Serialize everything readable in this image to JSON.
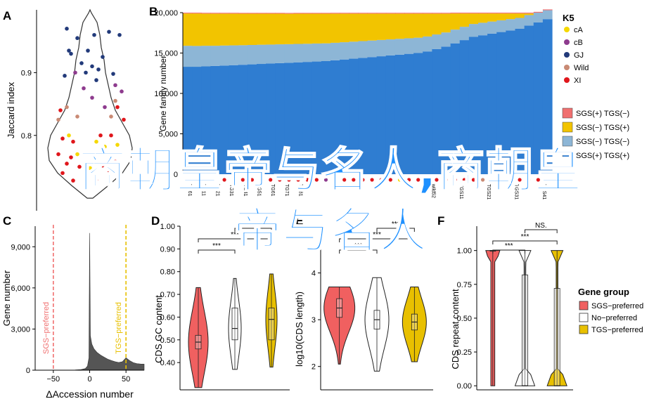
{
  "overlay_title": {
    "line1": "商朝皇帝与名人,商朝皇",
    "line2": "帝与名人"
  },
  "panels": {
    "A": {
      "letter": "A"
    },
    "B": {
      "letter": "B"
    },
    "C": {
      "letter": "C"
    },
    "D": {
      "letter": "D"
    },
    "E": {
      "letter": "E"
    },
    "F": {
      "letter": "F"
    }
  },
  "colors": {
    "cA": "#f5d800",
    "cB": "#8e3b8e",
    "GJ": "#223a7a",
    "Wild": "#c98a74",
    "XI": "#e0161b",
    "SGS_plus_TGS_minus": "#f07070",
    "SGS_minus_TGS_plus": "#f2c400",
    "SGS_minus_TGS_minus": "#8db6d6",
    "SGS_plus_TGS_plus": "#2f7dd1",
    "sgs_pref": "#f06060",
    "no_pref": "#ffffff",
    "tgs_pref": "#e8c000",
    "overlay": "#1e90ff"
  },
  "chart_data": [
    {
      "id": "A",
      "type": "scatter",
      "title": "",
      "xlabel": "",
      "ylabel": "Jaccard index",
      "ylim": [
        0.68,
        1.0
      ],
      "yticks": [
        "0.8",
        "0.9"
      ],
      "legend_title": "K5",
      "points": [
        {
          "g": "GJ",
          "x": -0.55,
          "y": 0.97
        },
        {
          "g": "GJ",
          "x": 0.45,
          "y": 0.965
        },
        {
          "g": "GJ",
          "x": -0.3,
          "y": 0.955
        },
        {
          "g": "GJ",
          "x": 0.1,
          "y": 0.96
        },
        {
          "g": "GJ",
          "x": 0.7,
          "y": 0.96
        },
        {
          "g": "GJ",
          "x": -0.5,
          "y": 0.935
        },
        {
          "g": "GJ",
          "x": -0.45,
          "y": 0.93
        },
        {
          "g": "GJ",
          "x": -0.05,
          "y": 0.935
        },
        {
          "g": "GJ",
          "x": 0.3,
          "y": 0.925
        },
        {
          "g": "GJ",
          "x": -0.2,
          "y": 0.915
        },
        {
          "g": "GJ",
          "x": 0.05,
          "y": 0.91
        },
        {
          "g": "GJ",
          "x": -0.1,
          "y": 0.9
        },
        {
          "g": "GJ",
          "x": 0.2,
          "y": 0.905
        },
        {
          "g": "GJ",
          "x": 0.55,
          "y": 0.898
        },
        {
          "g": "GJ",
          "x": -0.6,
          "y": 0.895
        },
        {
          "g": "GJ",
          "x": 0.15,
          "y": 0.888
        },
        {
          "g": "cB",
          "x": -0.35,
          "y": 0.9
        },
        {
          "g": "cB",
          "x": 0.6,
          "y": 0.88
        },
        {
          "g": "cB",
          "x": 0.75,
          "y": 0.87
        },
        {
          "g": "cB",
          "x": -0.15,
          "y": 0.875
        },
        {
          "g": "cB",
          "x": 0.05,
          "y": 0.86
        },
        {
          "g": "cB",
          "x": 0.35,
          "y": 0.845
        },
        {
          "g": "Wild",
          "x": -0.55,
          "y": 0.845
        },
        {
          "g": "Wild",
          "x": 0.6,
          "y": 0.855
        },
        {
          "g": "Wild",
          "x": -0.75,
          "y": 0.825
        },
        {
          "g": "Wild",
          "x": -0.3,
          "y": 0.83
        },
        {
          "g": "Wild",
          "x": 0.5,
          "y": 0.83
        },
        {
          "g": "XI",
          "x": -0.7,
          "y": 0.84
        },
        {
          "g": "XI",
          "x": 0.65,
          "y": 0.845
        },
        {
          "g": "XI",
          "x": 0.8,
          "y": 0.825
        },
        {
          "g": "XI",
          "x": -0.65,
          "y": 0.795
        },
        {
          "g": "XI",
          "x": -0.4,
          "y": 0.79
        },
        {
          "g": "XI",
          "x": 0.25,
          "y": 0.8
        },
        {
          "g": "XI",
          "x": 0.5,
          "y": 0.8
        },
        {
          "g": "XI",
          "x": -0.75,
          "y": 0.77
        },
        {
          "g": "XI",
          "x": -0.45,
          "y": 0.765
        },
        {
          "g": "XI",
          "x": -0.1,
          "y": 0.77
        },
        {
          "g": "XI",
          "x": 0.1,
          "y": 0.768
        },
        {
          "g": "XI",
          "x": 0.4,
          "y": 0.77
        },
        {
          "g": "XI",
          "x": 0.75,
          "y": 0.77
        },
        {
          "g": "XI",
          "x": -0.55,
          "y": 0.755
        },
        {
          "g": "XI",
          "x": 0.6,
          "y": 0.758
        },
        {
          "g": "XI",
          "x": -0.25,
          "y": 0.75
        },
        {
          "g": "XI",
          "x": 0.3,
          "y": 0.752
        },
        {
          "g": "XI",
          "x": -0.65,
          "y": 0.74
        },
        {
          "g": "XI",
          "x": 0.45,
          "y": 0.74
        },
        {
          "g": "XI",
          "x": -0.1,
          "y": 0.738
        },
        {
          "g": "XI",
          "x": 0.7,
          "y": 0.735
        },
        {
          "g": "XI",
          "x": -0.4,
          "y": 0.728
        },
        {
          "g": "XI",
          "x": 0.15,
          "y": 0.728
        },
        {
          "g": "cA",
          "x": -0.5,
          "y": 0.8
        },
        {
          "g": "cA",
          "x": 0.15,
          "y": 0.79
        },
        {
          "g": "cA",
          "x": 0.65,
          "y": 0.785
        },
        {
          "g": "cA",
          "x": -0.3,
          "y": 0.77
        },
        {
          "g": "cA",
          "x": 0.35,
          "y": 0.782
        },
        {
          "g": "cA",
          "x": 0.0,
          "y": 0.748
        }
      ]
    },
    {
      "id": "B",
      "type": "bar",
      "stacked": true,
      "title": "",
      "xlabel": "",
      "ylabel": "Gene family number",
      "ylim": [
        0,
        20000
      ],
      "yticks": [
        "0",
        "5,000",
        "10,000",
        "15,000",
        "20,000"
      ],
      "x_labels_left": [
        "TG61",
        "TG11",
        "TG21",
        "TG31",
        "TG41",
        "TG51",
        "TG61",
        "TG71",
        "TG81"
      ],
      "x_labels_right": [
        "wild52",
        "TGS11",
        "TGS21",
        "TGS31",
        "TGS41"
      ],
      "legend": [
        {
          "name": "K5",
          "group": true,
          "items": [
            "cA",
            "cB",
            "GJ",
            "Wild",
            "XI"
          ]
        },
        {
          "name": "SGS(+) TGS(−)",
          "key": "SGS_plus_TGS_minus"
        },
        {
          "name": "SGS(−) TGS(+)",
          "key": "SGS_minus_TGS_plus"
        },
        {
          "name": "SGS(−) TGS(−)",
          "key": "SGS_minus_TGS_minus"
        },
        {
          "name": "SGS(+) TGS(+)",
          "key": "SGS_plus_TGS_plus"
        }
      ],
      "series": {
        "SGS_plus_TGS_plus": [
          13300,
          13300,
          13350,
          13400,
          13450,
          13500,
          13550,
          13600,
          13650,
          13700,
          13750,
          13800,
          13850,
          13900,
          13950,
          14000,
          14100,
          14200,
          14300,
          14400,
          14500,
          14600,
          14700,
          14800,
          14900,
          15000,
          15200,
          15500,
          15800,
          16200,
          16600,
          17000,
          17200,
          17400,
          17600,
          17800,
          18000,
          18400,
          18800,
          19200
        ],
        "SGS_minus_TGS_minus": [
          2600,
          2580,
          2550,
          2500,
          2480,
          2450,
          2420,
          2400,
          2380,
          2350,
          2330,
          2300,
          2280,
          2250,
          2230,
          2200,
          2170,
          2140,
          2110,
          2080,
          2050,
          2020,
          1990,
          1960,
          1930,
          1900,
          1850,
          1800,
          1750,
          1700,
          1650,
          1600,
          1550,
          1500,
          1450,
          1400,
          1350,
          1300,
          1200,
          1100
        ],
        "SGS_minus_TGS_plus": [
          4000,
          4020,
          3980,
          3980,
          3950,
          3930,
          3900,
          3870,
          3840,
          3820,
          3790,
          3760,
          3740,
          3720,
          3690,
          3670,
          3610,
          3540,
          3470,
          3400,
          3330,
          3260,
          3190,
          3120,
          3050,
          2980,
          2830,
          2580,
          2330,
          2000,
          1650,
          1300,
          1150,
          1000,
          850,
          700,
          550,
          200,
          0,
          0
        ],
        "SGS_plus_TGS_minus": [
          100,
          100,
          100,
          100,
          100,
          100,
          100,
          100,
          100,
          100,
          100,
          100,
          100,
          100,
          100,
          100,
          100,
          100,
          100,
          100,
          100,
          100,
          100,
          100,
          100,
          100,
          100,
          100,
          100,
          100,
          100,
          100,
          100,
          100,
          100,
          100,
          100,
          100,
          100,
          100
        ]
      },
      "dot_colors": [
        "XI",
        "XI",
        "XI",
        "XI",
        "XI",
        "XI",
        "XI",
        "XI",
        "cA",
        "XI",
        "XI",
        "XI",
        "XI",
        "XI",
        "XI",
        "cB",
        "XI",
        "XI",
        "XI",
        "XI",
        "XI",
        "XI",
        "XI",
        "cA",
        "XI",
        "XI",
        "XI",
        "XI",
        "XI",
        "XI",
        "XI",
        "XI",
        "Wild",
        "XI",
        "XI",
        "XI",
        "XI",
        "XI",
        "XI",
        "XI"
      ]
    },
    {
      "id": "C",
      "type": "area",
      "title": "",
      "xlabel": "ΔAccession number",
      "ylabel": "Gene number",
      "ylim": [
        0,
        10500
      ],
      "xlim": [
        -75,
        75
      ],
      "yticks": [
        "0",
        "3,000",
        "6,000",
        "9,000"
      ],
      "xticks": [
        "−50",
        "0",
        "50"
      ],
      "vlines": [
        {
          "x": -50,
          "label": "SGS−preferred",
          "color": "#f07070"
        },
        {
          "x": 50,
          "label": "TGS−preferred",
          "color": "#e8c000"
        }
      ],
      "x": [
        -75,
        -60,
        -50,
        -40,
        -30,
        -20,
        -12,
        -6,
        -3,
        -1,
        0,
        1,
        3,
        6,
        10,
        15,
        20,
        25,
        30,
        35,
        40,
        45,
        50,
        55,
        60,
        65,
        70,
        75
      ],
      "values": [
        5,
        5,
        5,
        8,
        10,
        15,
        40,
        120,
        300,
        900,
        10000,
        2500,
        1900,
        1550,
        1300,
        1100,
        950,
        800,
        700,
        620,
        560,
        620,
        900,
        700,
        550,
        480,
        450,
        440
      ]
    },
    {
      "id": "D",
      "type": "violin",
      "ylabel": "CDS GC content",
      "ylim": [
        0.28,
        1.0
      ],
      "yticks": [
        "0.40",
        "0.50",
        "0.60",
        "0.70",
        "0.80",
        "0.90",
        "1.00"
      ],
      "groups": [
        {
          "name": "SGS−preferred",
          "key": "sgs_pref",
          "median": 0.49,
          "q1": 0.46,
          "q3": 0.52,
          "min": 0.29,
          "max": 0.73
        },
        {
          "name": "No−preferred",
          "key": "no_pref",
          "median": 0.55,
          "q1": 0.5,
          "q3": 0.64,
          "min": 0.37,
          "max": 0.77
        },
        {
          "name": "TGS−preferred",
          "key": "tgs_pref",
          "median": 0.59,
          "q1": 0.5,
          "q3": 0.64,
          "min": 0.38,
          "max": 0.79
        }
      ],
      "sig": [
        {
          "from": 0,
          "to": 1,
          "label": "***"
        },
        {
          "from": 0,
          "to": 2,
          "label": "***"
        },
        {
          "from": 1,
          "to": 2,
          "label": "***"
        }
      ]
    },
    {
      "id": "E",
      "type": "violin",
      "ylabel": "log10(CDS length)",
      "ylim": [
        1.5,
        5.0
      ],
      "yticks": [
        "2",
        "3",
        "4"
      ],
      "groups": [
        {
          "name": "SGS−preferred",
          "key": "sgs_pref",
          "median": 3.25,
          "q1": 3.05,
          "q3": 3.45,
          "min": 2.05,
          "max": 3.7
        },
        {
          "name": "No−preferred",
          "key": "no_pref",
          "median": 3.0,
          "q1": 2.8,
          "q3": 3.2,
          "min": 1.9,
          "max": 3.9
        },
        {
          "name": "TGS−preferred",
          "key": "tgs_pref",
          "median": 2.95,
          "q1": 2.78,
          "q3": 3.12,
          "min": 2.1,
          "max": 3.7
        }
      ],
      "sig": [
        {
          "from": 0,
          "to": 1,
          "label": "***"
        },
        {
          "from": 0,
          "to": 2,
          "label": "***"
        },
        {
          "from": 1,
          "to": 2,
          "label": "***"
        }
      ]
    },
    {
      "id": "F",
      "type": "violin",
      "ylabel": "CDS repeat content",
      "ylim": [
        -0.03,
        1.18
      ],
      "yticks": [
        "0.00",
        "0.25",
        "0.50",
        "0.75",
        "1.00"
      ],
      "legend_title": "Gene group",
      "groups": [
        {
          "name": "SGS−preferred",
          "key": "sgs_pref",
          "median": 1.0,
          "q1": 1.0,
          "q3": 1.0,
          "min": 0.0,
          "max": 1.0
        },
        {
          "name": "No−preferred",
          "key": "no_pref",
          "median": 0.0,
          "q1": 0.0,
          "q3": 0.82,
          "min": 0.0,
          "max": 1.0
        },
        {
          "name": "TGS−preferred",
          "key": "tgs_pref",
          "median": 0.0,
          "q1": 0.0,
          "q3": 0.72,
          "min": 0.0,
          "max": 1.0
        }
      ],
      "sig": [
        {
          "from": 0,
          "to": 1,
          "label": "***"
        },
        {
          "from": 0,
          "to": 2,
          "label": "***"
        },
        {
          "from": 1,
          "to": 2,
          "label": "NS."
        }
      ]
    }
  ]
}
